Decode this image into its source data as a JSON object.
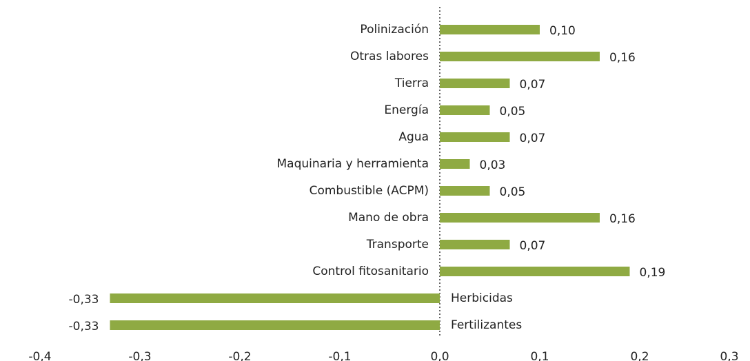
{
  "chart_data": {
    "type": "barh",
    "categories": [
      "Polinización",
      "Otras labores",
      "Tierra",
      "Energía",
      "Agua",
      "Maquinaria y herramienta",
      "Combustible (ACPM)",
      "Mano de obra",
      "Transporte",
      "Control fitosanitario",
      "Herbicidas",
      "Fertilizantes"
    ],
    "values": [
      0.1,
      0.16,
      0.07,
      0.05,
      0.07,
      0.03,
      0.05,
      0.16,
      0.07,
      0.19,
      -0.33,
      -0.33
    ],
    "value_labels": [
      "0,10",
      "0,16",
      "0,07",
      "0,05",
      "0,07",
      "0,03",
      "0,05",
      "0,16",
      "0,07",
      "0,19",
      "-0,33",
      "-0,33"
    ],
    "color": "#8faa43",
    "xlim": [
      -0.4,
      0.3
    ],
    "xticks": [
      {
        "value": -0.4,
        "label": "-0,4"
      },
      {
        "value": -0.3,
        "label": "-0,3"
      },
      {
        "value": -0.2,
        "label": "-0,2"
      },
      {
        "value": -0.1,
        "label": "-0,1"
      },
      {
        "value": 0.0,
        "label": "0,0"
      },
      {
        "value": 0.1,
        "label": "0,1"
      },
      {
        "value": 0.2,
        "label": "0,2"
      },
      {
        "value": 0.3,
        "label": "0,3"
      }
    ]
  }
}
